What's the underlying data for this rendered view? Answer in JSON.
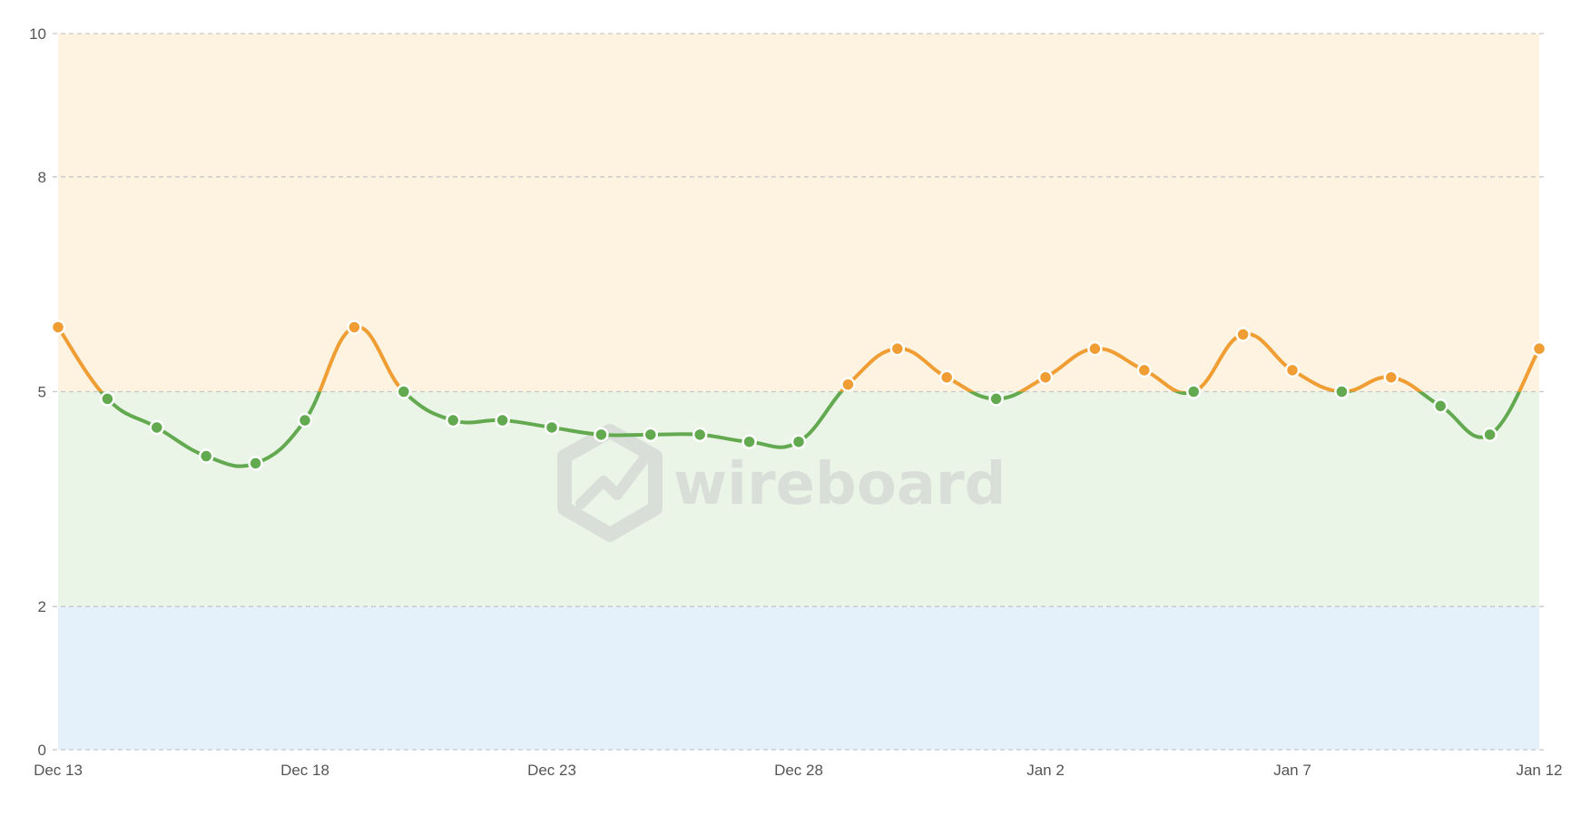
{
  "chart_data": {
    "type": "line",
    "x": [
      "Dec 13",
      "Dec 14",
      "Dec 15",
      "Dec 16",
      "Dec 17",
      "Dec 18",
      "Dec 19",
      "Dec 20",
      "Dec 21",
      "Dec 22",
      "Dec 23",
      "Dec 24",
      "Dec 25",
      "Dec 26",
      "Dec 27",
      "Dec 28",
      "Dec 29",
      "Dec 30",
      "Dec 31",
      "Jan 1",
      "Jan 2",
      "Jan 3",
      "Jan 4",
      "Jan 5",
      "Jan 6",
      "Jan 7",
      "Jan 8",
      "Jan 9",
      "Jan 10",
      "Jan 11",
      "Jan 12"
    ],
    "x_tick_labels": [
      "Dec 13",
      "Dec 18",
      "Dec 23",
      "Dec 28",
      "Jan 2",
      "Jan 7",
      "Jan 12"
    ],
    "x_tick_indices": [
      0,
      5,
      10,
      15,
      20,
      25,
      30
    ],
    "series": [
      {
        "values": [
          5.9,
          4.9,
          4.5,
          4.1,
          4.0,
          4.6,
          5.9,
          5.0,
          4.6,
          4.6,
          4.5,
          4.4,
          4.4,
          4.4,
          4.3,
          4.3,
          5.1,
          5.6,
          5.2,
          4.9,
          5.2,
          5.6,
          5.3,
          5.0,
          5.8,
          5.3,
          5.0,
          5.2,
          4.8,
          4.4,
          5.6
        ]
      }
    ],
    "ylim": [
      0,
      10
    ],
    "y_ticks": [
      0,
      2,
      5,
      8,
      10
    ],
    "bands": [
      {
        "from": 0,
        "to": 2,
        "color": "#e4f1fa"
      },
      {
        "from": 2,
        "to": 5,
        "color": "#eaf4e7"
      },
      {
        "from": 5,
        "to": 10,
        "color": "#fdf3e0"
      }
    ],
    "threshold": 5,
    "colors": {
      "below": "#62a94f",
      "above": "#f09d34",
      "grid": "#c8c8c8",
      "axis_text": "#555555"
    },
    "grid": true,
    "xlabel": "",
    "ylabel": "",
    "title": ""
  },
  "watermark": {
    "text": "wireboard",
    "icon": "wireboard-logo-icon"
  }
}
